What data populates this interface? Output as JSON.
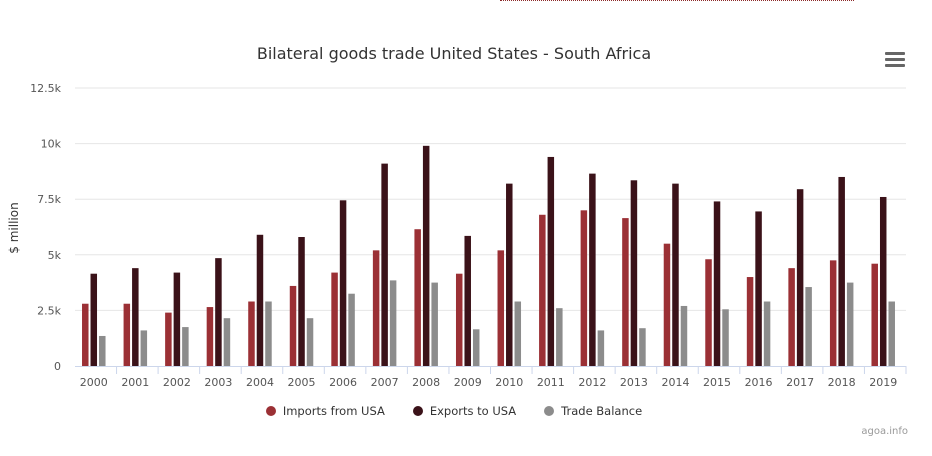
{
  "title": "Bilateral goods trade United States - South Africa",
  "credits": "agoa.info",
  "colors": {
    "imports": "#9b3035",
    "exports": "#3b1219",
    "balance": "#8c8c8c"
  },
  "chart_data": {
    "type": "bar",
    "title": "Bilateral goods trade United States - South Africa",
    "xlabel": "",
    "ylabel": "$ million",
    "ylim": [
      0,
      12500
    ],
    "yticks": [
      0,
      2500,
      5000,
      7500,
      10000,
      12500
    ],
    "ytick_labels": [
      "0",
      "2.5k",
      "5k",
      "7.5k",
      "10k",
      "12.5k"
    ],
    "grid": true,
    "legend_position": "bottom-center",
    "categories": [
      "2000",
      "2001",
      "2002",
      "2003",
      "2004",
      "2005",
      "2006",
      "2007",
      "2008",
      "2009",
      "2010",
      "2011",
      "2012",
      "2013",
      "2014",
      "2015",
      "2016",
      "2017",
      "2018",
      "2019"
    ],
    "series": [
      {
        "name": "Imports from USA",
        "color": "#9b3035",
        "values": [
          2800,
          2800,
          2400,
          2650,
          2900,
          3600,
          4200,
          5200,
          6150,
          4150,
          5200,
          6800,
          7000,
          6650,
          5500,
          4800,
          4000,
          4400,
          4750,
          4600
        ]
      },
      {
        "name": "Exports to USA",
        "color": "#3b1219",
        "values": [
          4150,
          4400,
          4200,
          4850,
          5900,
          5800,
          7450,
          9100,
          9900,
          5850,
          8200,
          9400,
          8650,
          8350,
          8200,
          7400,
          6950,
          7950,
          8500,
          7600
        ]
      },
      {
        "name": "Trade Balance",
        "color": "#8c8c8c",
        "values": [
          1350,
          1600,
          1750,
          2150,
          2900,
          2150,
          3250,
          3850,
          3750,
          1650,
          2900,
          2600,
          1600,
          1700,
          2700,
          2550,
          2900,
          3550,
          3750,
          2900
        ]
      }
    ]
  }
}
